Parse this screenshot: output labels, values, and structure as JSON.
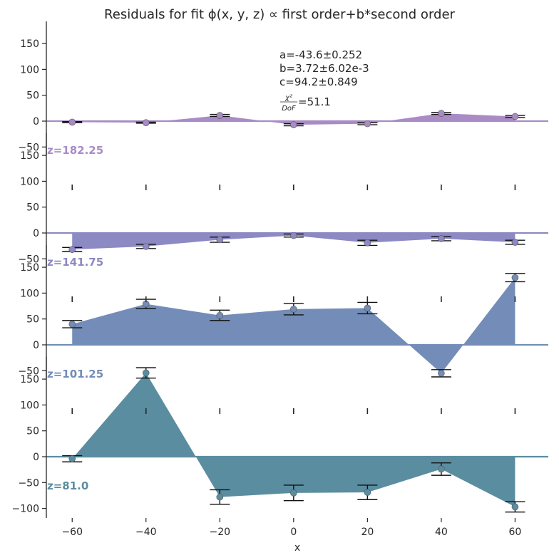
{
  "chart_data": {
    "type": "area",
    "title": "Residuals for fit ϕ(x, y, z) ∝ first order+b*second order",
    "xlabel": "x",
    "ylabel": "",
    "xlim": [
      -67,
      69
    ],
    "ylim": [
      -120,
      190
    ],
    "x_ticks": [
      -60,
      -40,
      -20,
      0,
      20,
      40,
      60
    ],
    "x_tick_labels": [
      "−60",
      "−40",
      "−20",
      "0",
      "20",
      "40",
      "60"
    ],
    "y_ticks": [
      -100,
      -50,
      0,
      50,
      100,
      150
    ],
    "y_tick_labels": [
      "−100",
      "−50",
      "0",
      "50",
      "100",
      "150"
    ],
    "annotations": [
      "a=-43.6±0.252",
      "b=3.72±6.02e-3",
      "c=94.2±0.849",
      "=51.1"
    ],
    "chi2_label": {
      "num": "χ²",
      "den": "DoF"
    },
    "series": [
      {
        "name": "z=182.25",
        "color": "#a98bc6",
        "x": [
          -60,
          -40,
          -20,
          0,
          20,
          40,
          60
        ],
        "values": [
          -2,
          -3,
          11,
          -7,
          -5,
          15,
          9
        ],
        "errors": [
          1,
          1,
          2,
          2,
          2,
          2,
          2
        ]
      },
      {
        "name": "z=141.75",
        "color": "#8c89c3",
        "x": [
          -60,
          -40,
          -20,
          0,
          20,
          40,
          60
        ],
        "values": [
          -32,
          -26,
          -13,
          -5,
          -19,
          -11,
          -18
        ],
        "errors": [
          4,
          4,
          5,
          3,
          5,
          4,
          4
        ]
      },
      {
        "name": "z=101.25",
        "color": "#738db8",
        "x": [
          -60,
          -40,
          -20,
          0,
          20,
          40,
          60
        ],
        "values": [
          40,
          79,
          57,
          69,
          71,
          -55,
          130
        ],
        "errors": [
          7,
          9,
          10,
          11,
          11,
          7,
          8
        ]
      },
      {
        "name": "z=81.0",
        "color": "#5b8da1",
        "x": [
          -60,
          -40,
          -20,
          0,
          20,
          40,
          60
        ],
        "values": [
          -4,
          162,
          -78,
          -70,
          -69,
          -24,
          -97
        ],
        "errors": [
          6,
          10,
          14,
          15,
          14,
          12,
          10
        ]
      }
    ]
  }
}
